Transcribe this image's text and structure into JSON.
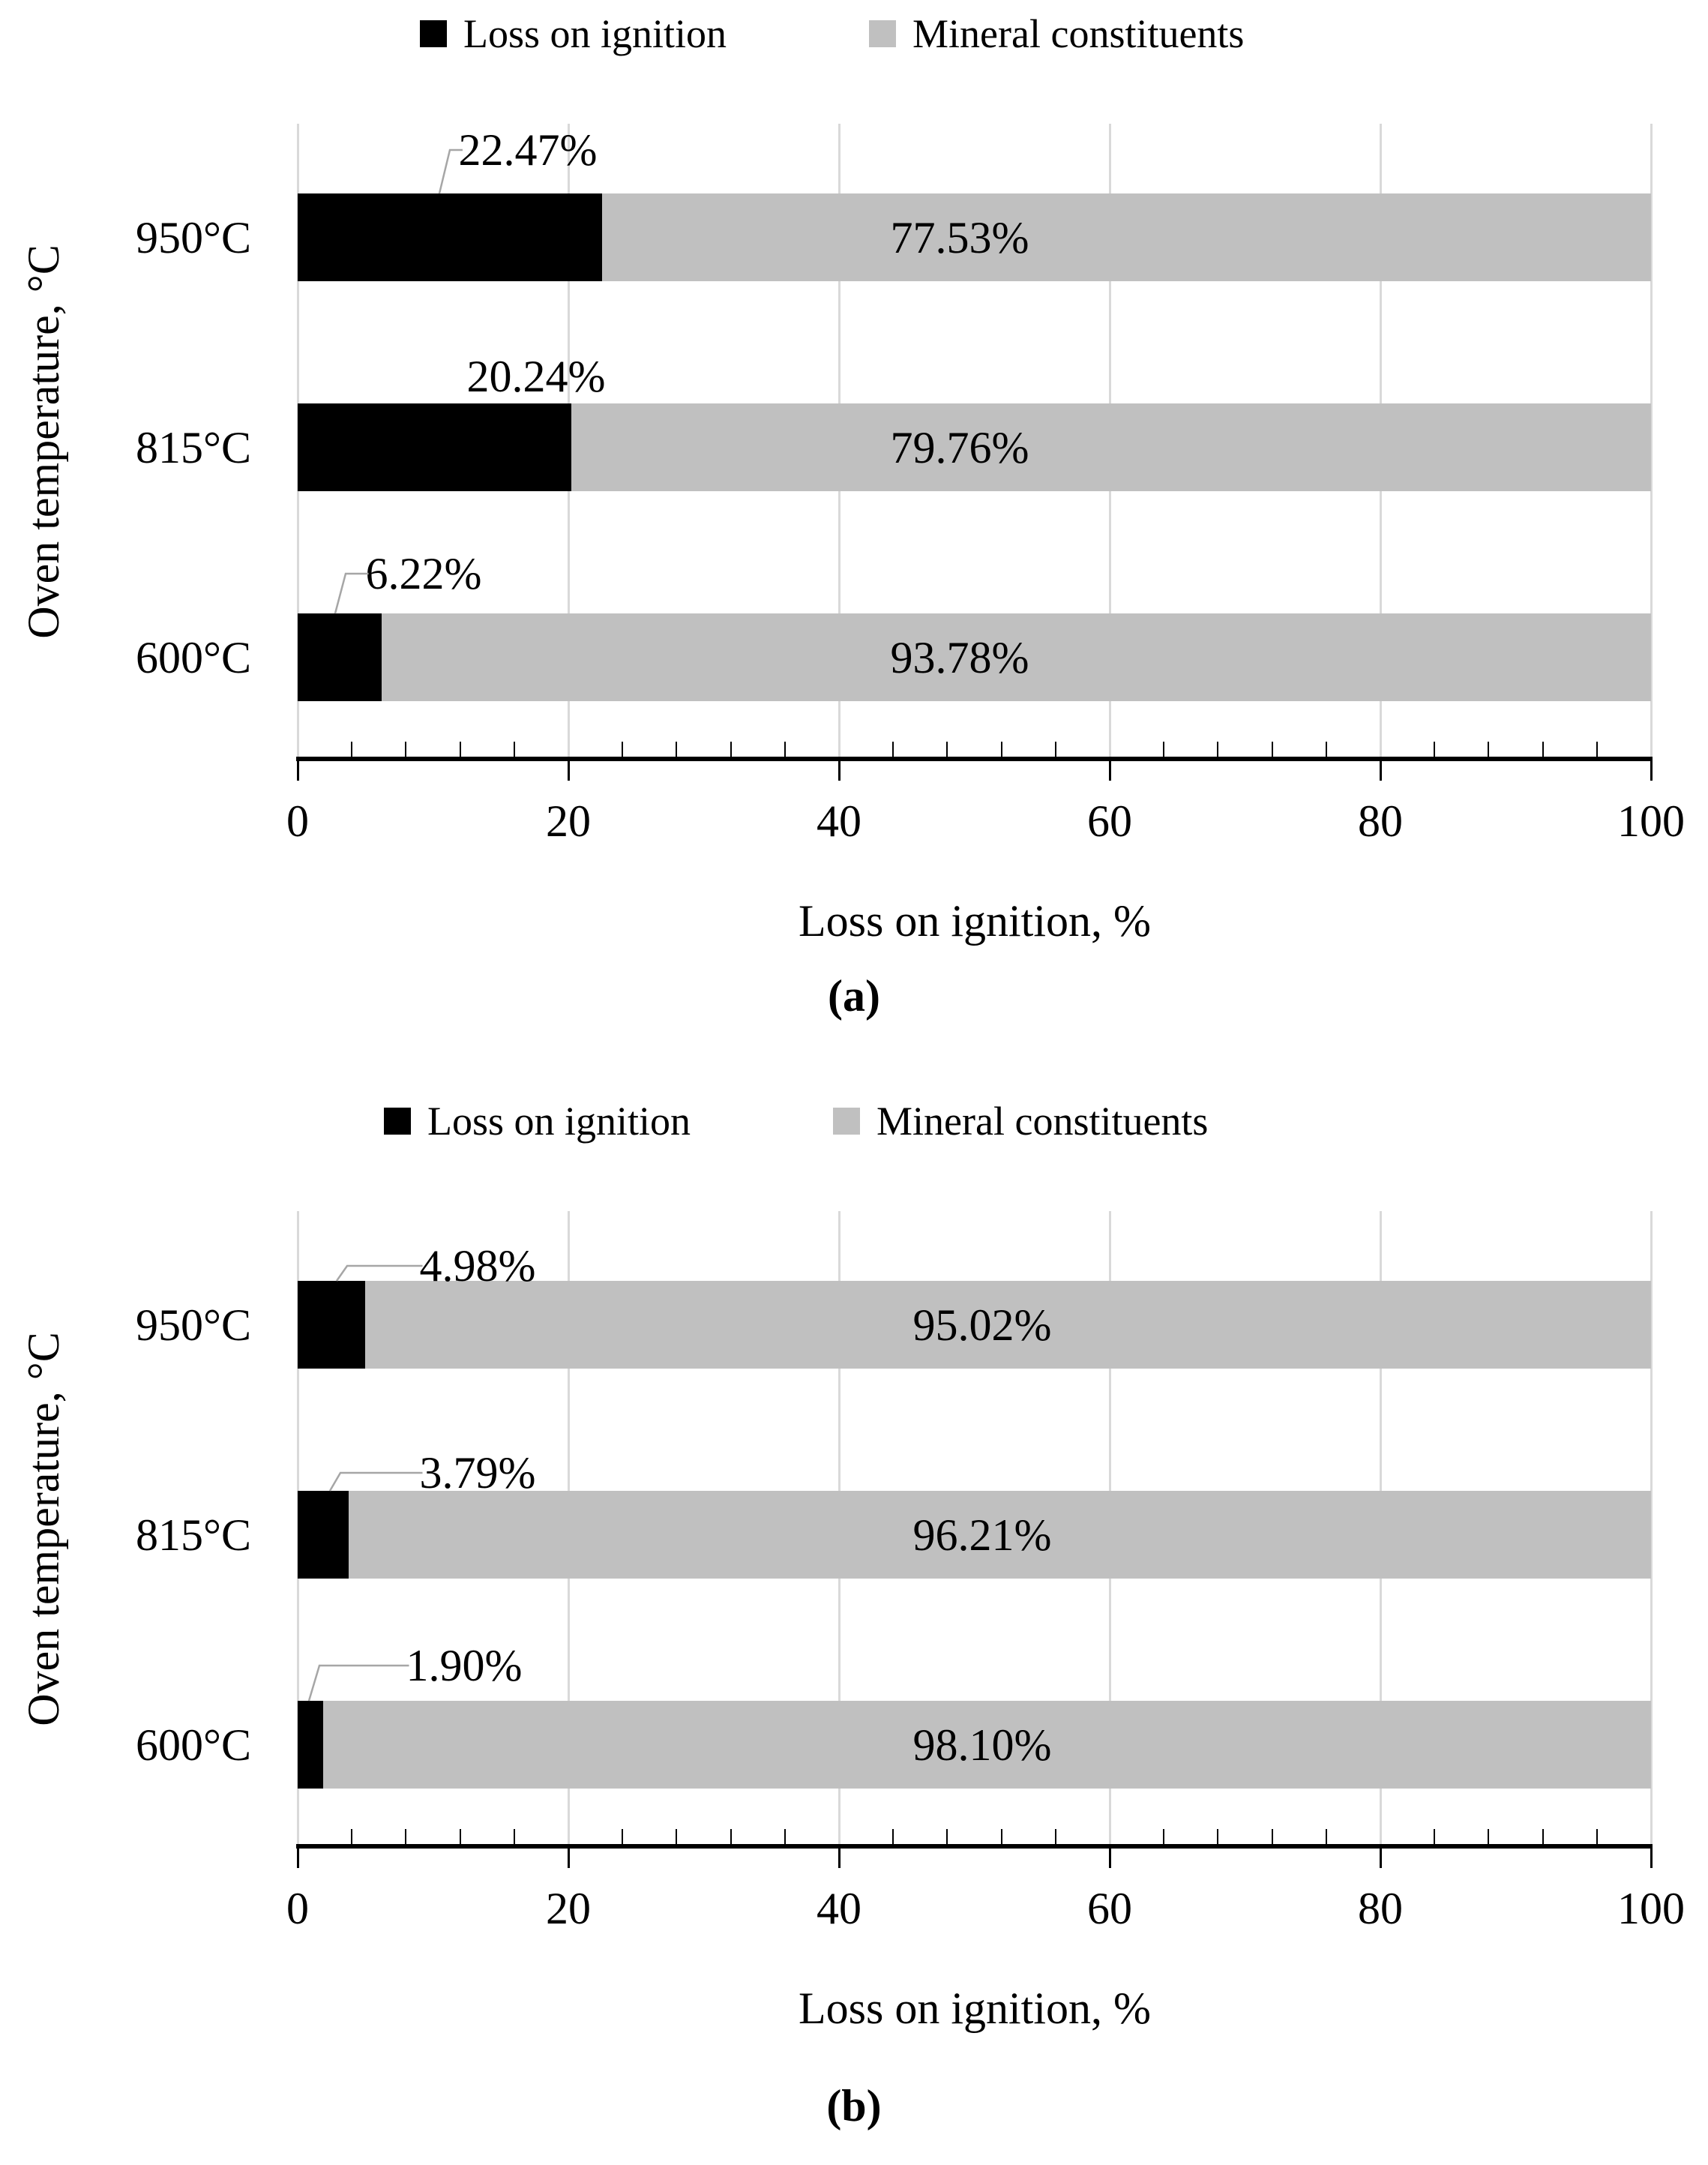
{
  "figure_labels": {
    "a": "(a)",
    "b": "(b)"
  },
  "colors": {
    "series_black": "#000000",
    "series_gray": "#C0C0C0",
    "gridline": "#D9D9D9",
    "axis": "#000000",
    "leader_line": "#A6A6A6",
    "background": "#FFFFFF"
  },
  "chart_data": [
    {
      "id": "a",
      "type": "bar",
      "orientation": "horizontal",
      "stacked": true,
      "panel_label": "(a)",
      "xlabel": "Loss on ignition, %",
      "ylabel": "Oven temperature, °C",
      "categories": [
        "950°C",
        "815°C",
        "600°C"
      ],
      "xlim": [
        0,
        100
      ],
      "x_ticks": [
        0,
        20,
        40,
        60,
        80,
        100
      ],
      "minor_tick_unit": 4,
      "grid": "major vertical gridlines",
      "legend_position": "top",
      "series": [
        {
          "name": "Loss on ignition",
          "color": "#000000",
          "values": [
            22.47,
            20.24,
            6.22
          ],
          "labels": [
            "22.47%",
            "20.24%",
            "6.22%"
          ]
        },
        {
          "name": "Mineral constituents",
          "color": "#C0C0C0",
          "values": [
            77.53,
            79.76,
            93.78
          ],
          "labels": [
            "77.53%",
            "79.76%",
            "93.78%"
          ]
        }
      ]
    },
    {
      "id": "b",
      "type": "bar",
      "orientation": "horizontal",
      "stacked": true,
      "panel_label": "(b)",
      "xlabel": "Loss on ignition, %",
      "ylabel": "Oven temperature, °C",
      "categories": [
        "950°C",
        "815°C",
        "600°C"
      ],
      "xlim": [
        0,
        100
      ],
      "x_ticks": [
        0,
        20,
        40,
        60,
        80,
        100
      ],
      "minor_tick_unit": 4,
      "grid": "major vertical gridlines",
      "legend_position": "top",
      "series": [
        {
          "name": "Loss on ignition",
          "color": "#000000",
          "values": [
            4.98,
            3.79,
            1.9
          ],
          "labels": [
            "4.98%",
            "3.79%",
            "1.90%"
          ]
        },
        {
          "name": "Mineral constituents",
          "color": "#C0C0C0",
          "values": [
            95.02,
            96.21,
            98.1
          ],
          "labels": [
            "95.02%",
            "96.21%",
            "98.10%"
          ]
        }
      ]
    }
  ]
}
